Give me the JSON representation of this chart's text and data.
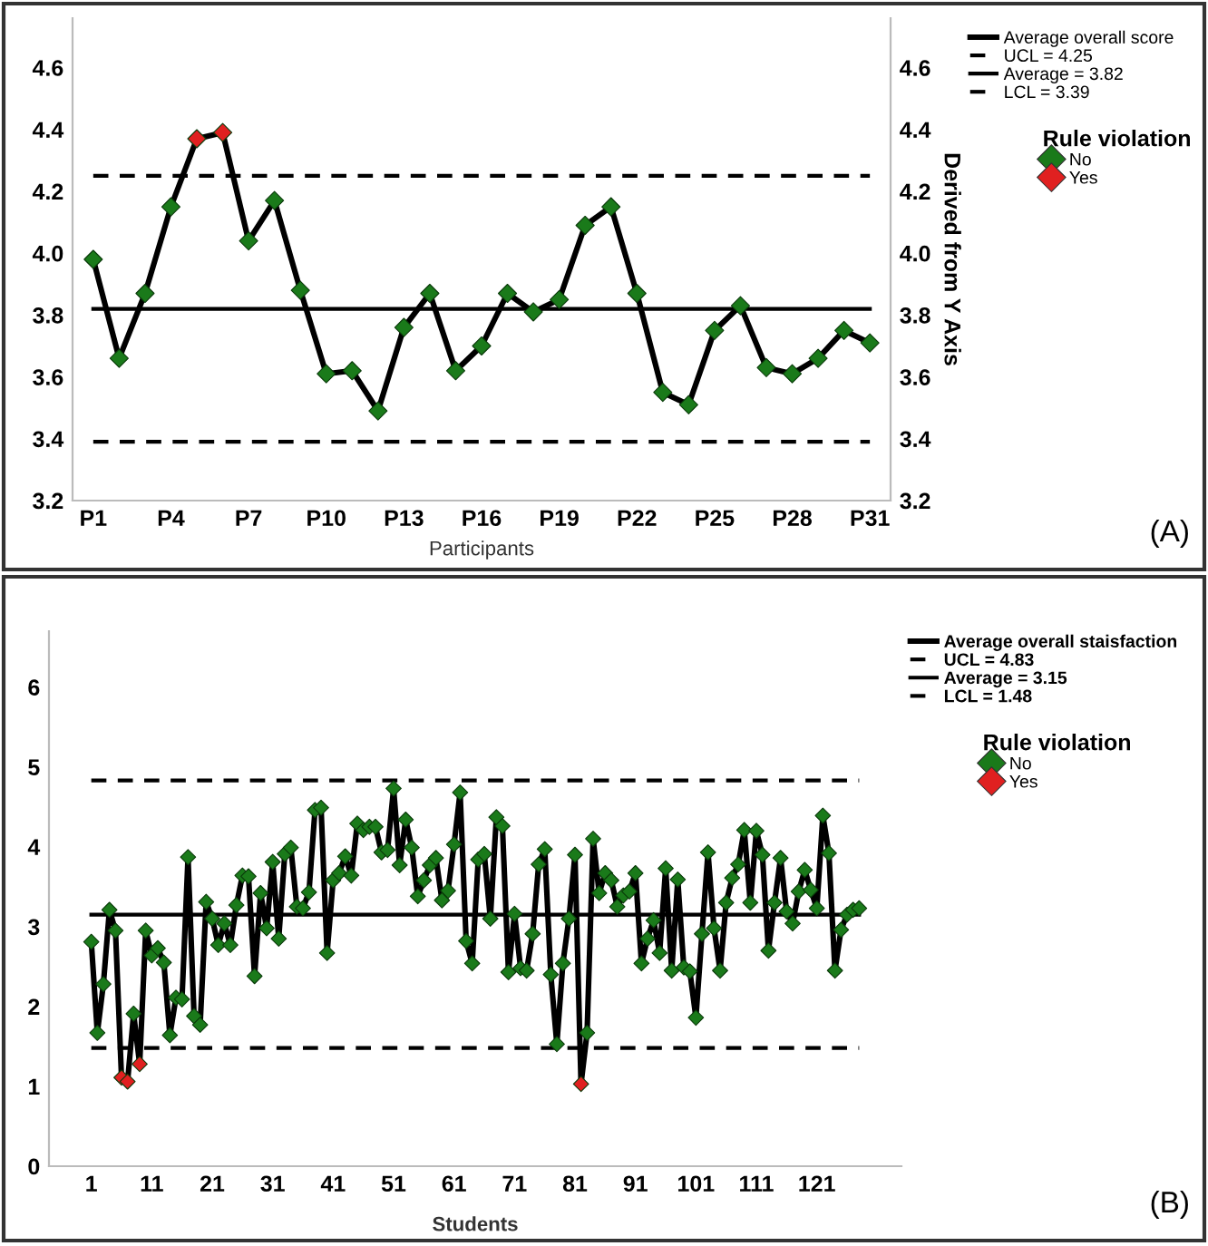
{
  "chart_data": [
    {
      "type": "line",
      "xlabel": "Participants",
      "y2label": "Derived from Y Axis",
      "legend_title": "Rule violation",
      "legend": "right",
      "annotations": [
        "(A)"
      ],
      "categories": [
        "P1",
        null,
        null,
        "P4",
        null,
        null,
        "P7",
        null,
        null,
        "P10",
        null,
        null,
        "P13",
        null,
        null,
        "P16",
        null,
        null,
        "P19",
        null,
        null,
        "P22",
        null,
        null,
        "P25",
        null,
        null,
        "P28",
        null,
        null,
        "P31"
      ],
      "ylim": [
        3.2,
        4.76
      ],
      "yticks": [
        3.2,
        3.4,
        3.6,
        3.8,
        {
          "value": 4.0,
          "label": "4.0"
        },
        4.2,
        4.4,
        4.6
      ],
      "y2lim": [
        3.2,
        4.76
      ],
      "y2ticks": [
        3.2,
        3.4,
        3.6,
        3.8,
        {
          "value": 4.0,
          "label": "4.0"
        },
        4.2,
        4.4,
        4.6
      ],
      "series": [
        {
          "name": "Average overall score",
          "marker": "none",
          "color": "#000000",
          "values": [
            3.98,
            3.66,
            3.87,
            4.15,
            4.37,
            4.39,
            4.04,
            4.17,
            3.88,
            3.61,
            3.62,
            3.49,
            3.76,
            3.87,
            3.62,
            3.7,
            3.87,
            3.81,
            3.85,
            4.09,
            4.15,
            3.87,
            3.55,
            3.51,
            3.75,
            3.83,
            3.63,
            3.61,
            3.66,
            3.75,
            3.71
          ]
        },
        {
          "name": "No",
          "type": "scatter",
          "marker": "diamond",
          "color": "#1a7a1a",
          "values": [
            3.98,
            3.66,
            3.87,
            4.15,
            null,
            null,
            4.04,
            4.17,
            3.88,
            3.61,
            3.62,
            3.49,
            3.76,
            3.87,
            3.62,
            3.7,
            3.87,
            3.81,
            3.85,
            4.09,
            4.15,
            3.87,
            3.55,
            3.51,
            3.75,
            3.83,
            3.63,
            3.61,
            3.66,
            3.75,
            3.71
          ]
        },
        {
          "name": "Yes",
          "type": "scatter",
          "marker": "diamond",
          "color": "#e02020",
          "values": [
            null,
            null,
            null,
            null,
            4.37,
            4.39,
            null,
            null,
            null,
            null,
            null,
            null,
            null,
            null,
            null,
            null,
            null,
            null,
            null,
            null,
            null,
            null,
            null,
            null,
            null,
            null,
            null,
            null,
            null,
            null,
            null
          ]
        }
      ],
      "ref_lines": [
        {
          "axis": "y",
          "value": 4.25,
          "label": "UCL = 4.25",
          "line_style": "dashed",
          "color": "#000000"
        },
        {
          "axis": "y",
          "value": 3.82,
          "label": "Average = 3.82",
          "line_style": "solid",
          "color": "#000000"
        },
        {
          "axis": "y",
          "value": 3.39,
          "label": "LCL = 3.39",
          "line_style": "dashed",
          "color": "#000000"
        }
      ]
    },
    {
      "type": "line",
      "xlabel": "Students",
      "legend_title": "Rule violation",
      "legend": "right",
      "annotations": [
        "(B)"
      ],
      "x": [
        1,
        2,
        3,
        4,
        5,
        6,
        7,
        8,
        9,
        10,
        11,
        12,
        13,
        14,
        15,
        16,
        17,
        18,
        19,
        20,
        21,
        22,
        23,
        24,
        25,
        26,
        27,
        28,
        29,
        30,
        31,
        32,
        33,
        34,
        35,
        36,
        37,
        38,
        39,
        40,
        41,
        42,
        43,
        44,
        45,
        46,
        47,
        48,
        49,
        50,
        51,
        52,
        53,
        54,
        55,
        56,
        57,
        58,
        59,
        60,
        61,
        62,
        63,
        64,
        65,
        66,
        67,
        68,
        69,
        70,
        71,
        72,
        73,
        74,
        75,
        76,
        77,
        78,
        79,
        80,
        81,
        82,
        83,
        84,
        85,
        86,
        87,
        88,
        89,
        90,
        91,
        92,
        93,
        94,
        95,
        96,
        97,
        98,
        99,
        100,
        101,
        102,
        103,
        104,
        105,
        106,
        107,
        108,
        109,
        110,
        111,
        112,
        113,
        114,
        115,
        116,
        117,
        118,
        119,
        120,
        121,
        122,
        123,
        124,
        125,
        126,
        127,
        128
      ],
      "xlim": [
        -6,
        135
      ],
      "xticks": [
        1,
        11,
        21,
        31,
        41,
        51,
        61,
        71,
        81,
        91,
        101,
        111,
        121
      ],
      "ylim": [
        0,
        6.7
      ],
      "yticks": [
        0,
        1,
        2,
        3,
        4,
        5,
        6
      ],
      "series": [
        {
          "name": "Average overall staisfaction",
          "marker": "none",
          "color": "#000000",
          "values": [
            2.81,
            1.67,
            2.28,
            3.21,
            2.95,
            1.11,
            1.06,
            1.91,
            1.28,
            2.95,
            2.64,
            2.73,
            2.55,
            1.64,
            2.11,
            2.09,
            3.87,
            1.88,
            1.77,
            3.31,
            3.1,
            2.77,
            3.04,
            2.77,
            3.27,
            3.64,
            3.63,
            2.38,
            3.42,
            2.98,
            3.81,
            2.85,
            3.91,
            3.99,
            3.25,
            3.23,
            3.43,
            4.46,
            4.49,
            2.67,
            3.58,
            3.67,
            3.88,
            3.64,
            4.29,
            4.21,
            4.25,
            4.25,
            3.93,
            3.96,
            4.73,
            3.77,
            4.34,
            3.99,
            3.38,
            3.58,
            3.77,
            3.86,
            3.33,
            3.45,
            4.03,
            4.68,
            2.82,
            2.54,
            3.84,
            3.91,
            3.1,
            4.37,
            4.26,
            2.43,
            3.16,
            2.48,
            2.45,
            2.91,
            3.78,
            3.97,
            2.4,
            1.53,
            2.54,
            3.1,
            3.9,
            1.03,
            1.67,
            4.1,
            3.42,
            3.67,
            3.58,
            3.25,
            3.39,
            3.44,
            3.67,
            2.54,
            2.85,
            3.08,
            2.67,
            3.73,
            2.45,
            3.59,
            2.49,
            2.44,
            1.86,
            2.91,
            3.93,
            2.98,
            2.45,
            3.3,
            3.61,
            3.78,
            4.21,
            3.3,
            4.2,
            3.9,
            2.7,
            3.3,
            3.86,
            3.19,
            3.04,
            3.44,
            3.71,
            3.46,
            3.23,
            4.39,
            3.92,
            2.45,
            2.96,
            3.15,
            3.21,
            3.23
          ]
        },
        {
          "name": "No",
          "type": "scatter",
          "marker": "diamond",
          "color": "#1a7a1a",
          "values": [
            2.81,
            1.67,
            2.28,
            3.21,
            2.95,
            null,
            null,
            1.91,
            null,
            2.95,
            2.64,
            2.73,
            2.55,
            1.64,
            2.11,
            2.09,
            3.87,
            1.88,
            1.77,
            3.31,
            3.1,
            2.77,
            3.04,
            2.77,
            3.27,
            3.64,
            3.63,
            2.38,
            3.42,
            2.98,
            3.81,
            2.85,
            3.91,
            3.99,
            3.25,
            3.23,
            3.43,
            4.46,
            4.49,
            2.67,
            3.58,
            3.67,
            3.88,
            3.64,
            4.29,
            4.21,
            4.25,
            4.25,
            3.93,
            3.96,
            4.73,
            3.77,
            4.34,
            3.99,
            3.38,
            3.58,
            3.77,
            3.86,
            3.33,
            3.45,
            4.03,
            4.68,
            2.82,
            2.54,
            3.84,
            3.91,
            3.1,
            4.37,
            4.26,
            2.43,
            3.16,
            2.48,
            2.45,
            2.91,
            3.78,
            3.97,
            2.4,
            1.53,
            2.54,
            3.1,
            3.9,
            null,
            1.67,
            4.1,
            3.42,
            3.67,
            3.58,
            3.25,
            3.39,
            3.44,
            3.67,
            2.54,
            2.85,
            3.08,
            2.67,
            3.73,
            2.45,
            3.59,
            2.49,
            2.44,
            1.86,
            2.91,
            3.93,
            2.98,
            2.45,
            3.3,
            3.61,
            3.78,
            4.21,
            3.3,
            4.2,
            3.9,
            2.7,
            3.3,
            3.86,
            3.19,
            3.04,
            3.44,
            3.71,
            3.46,
            3.23,
            4.39,
            3.92,
            2.45,
            2.96,
            3.15,
            3.21,
            3.23
          ]
        },
        {
          "name": "Yes",
          "type": "scatter",
          "marker": "diamond",
          "color": "#e02020",
          "values": [
            null,
            null,
            null,
            null,
            null,
            1.11,
            1.06,
            null,
            1.28,
            null,
            null,
            null,
            null,
            null,
            null,
            null,
            null,
            null,
            null,
            null,
            null,
            null,
            null,
            null,
            null,
            null,
            null,
            null,
            null,
            null,
            null,
            null,
            null,
            null,
            null,
            null,
            null,
            null,
            null,
            null,
            null,
            null,
            null,
            null,
            null,
            null,
            null,
            null,
            null,
            null,
            null,
            null,
            null,
            null,
            null,
            null,
            null,
            null,
            null,
            null,
            null,
            null,
            null,
            null,
            null,
            null,
            null,
            null,
            null,
            null,
            null,
            null,
            null,
            null,
            null,
            null,
            null,
            null,
            null,
            null,
            null,
            1.03,
            null,
            null,
            null,
            null,
            null,
            null,
            null,
            null,
            null,
            null,
            null,
            null,
            null,
            null,
            null,
            null,
            null,
            null,
            null,
            null,
            null,
            null,
            null,
            null,
            null,
            null,
            null,
            null,
            null,
            null,
            null,
            null,
            null,
            null,
            null,
            null,
            null,
            null,
            null,
            null,
            null,
            null,
            null,
            null,
            null,
            null
          ]
        }
      ],
      "ref_lines": [
        {
          "axis": "y",
          "value": 4.83,
          "label": "UCL = 4.83",
          "line_style": "dashed",
          "color": "#000000"
        },
        {
          "axis": "y",
          "value": 3.15,
          "label": "Average = 3.15",
          "line_style": "solid",
          "color": "#000000"
        },
        {
          "axis": "y",
          "value": 1.48,
          "label": "LCL = 1.48",
          "line_style": "dashed",
          "color": "#000000"
        }
      ]
    }
  ]
}
